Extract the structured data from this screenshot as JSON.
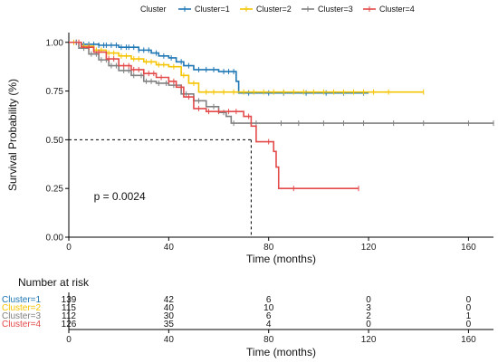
{
  "chart_data": [
    {
      "type": "line",
      "subtype": "kaplan-meier",
      "legend": {
        "title": "Cluster",
        "placement": "top"
      },
      "xlabel": "Time (months)",
      "ylabel": "Survival Probability (%)",
      "xlim": [
        0,
        170
      ],
      "ylim": [
        0,
        1.05
      ],
      "x_ticks": [
        0,
        40,
        80,
        120,
        160
      ],
      "y_ticks": [
        "0.00",
        "0.25",
        "0.50",
        "0.75",
        "1.00"
      ],
      "grid": false,
      "annotation": "p = 0.0024",
      "median_reference": {
        "survival": 0.5,
        "time": 73
      },
      "series": [
        {
          "name": "Cluster=1",
          "color": "#1f77b4",
          "steps": [
            [
              0,
              1.0
            ],
            [
              5,
              0.99
            ],
            [
              12,
              0.985
            ],
            [
              20,
              0.975
            ],
            [
              28,
              0.96
            ],
            [
              33,
              0.945
            ],
            [
              36,
              0.93
            ],
            [
              40,
              0.92
            ],
            [
              43,
              0.9
            ],
            [
              46,
              0.88
            ],
            [
              50,
              0.86
            ],
            [
              60,
              0.85
            ],
            [
              67,
              0.8
            ],
            [
              68,
              0.74
            ],
            [
              120,
              0.74
            ]
          ],
          "censors": [
            3,
            6,
            8,
            10,
            12,
            14,
            15,
            17,
            19,
            21,
            23,
            24,
            26,
            28,
            30,
            32,
            35,
            38,
            41,
            45,
            48,
            52,
            55,
            58,
            62,
            64,
            66,
            72,
            80,
            86,
            95,
            103,
            110,
            118
          ]
        },
        {
          "name": "Cluster=2",
          "color": "#f5c400",
          "steps": [
            [
              0,
              1.0
            ],
            [
              5,
              0.98
            ],
            [
              10,
              0.96
            ],
            [
              15,
              0.945
            ],
            [
              20,
              0.93
            ],
            [
              25,
              0.915
            ],
            [
              30,
              0.9
            ],
            [
              35,
              0.885
            ],
            [
              40,
              0.875
            ],
            [
              45,
              0.83
            ],
            [
              48,
              0.79
            ],
            [
              52,
              0.745
            ],
            [
              142,
              0.745
            ]
          ],
          "censors": [
            2,
            4,
            6,
            8,
            11,
            13,
            16,
            18,
            21,
            23,
            26,
            28,
            31,
            33,
            36,
            38,
            42,
            46,
            50,
            55,
            58,
            62,
            66,
            70,
            74,
            78,
            82,
            86,
            90,
            94,
            98,
            102,
            106,
            110,
            114,
            118,
            122,
            128,
            142
          ]
        },
        {
          "name": "Cluster=3",
          "color": "#808080",
          "steps": [
            [
              0,
              1.0
            ],
            [
              4,
              0.97
            ],
            [
              8,
              0.94
            ],
            [
              12,
              0.91
            ],
            [
              16,
              0.88
            ],
            [
              20,
              0.855
            ],
            [
              25,
              0.83
            ],
            [
              30,
              0.8
            ],
            [
              35,
              0.79
            ],
            [
              40,
              0.78
            ],
            [
              45,
              0.735
            ],
            [
              50,
              0.7
            ],
            [
              55,
              0.67
            ],
            [
              60,
              0.64
            ],
            [
              63,
              0.62
            ],
            [
              65,
              0.585
            ],
            [
              170,
              0.585
            ]
          ],
          "censors": [
            3,
            6,
            9,
            11,
            13,
            15,
            17,
            19,
            22,
            24,
            26,
            29,
            31,
            33,
            36,
            39,
            42,
            47,
            52,
            58,
            62,
            66,
            75,
            85,
            92,
            102,
            110,
            118,
            130,
            142,
            160,
            170
          ]
        },
        {
          "name": "Cluster=4",
          "color": "#e34a4a",
          "steps": [
            [
              0,
              1.0
            ],
            [
              5,
              0.975
            ],
            [
              10,
              0.95
            ],
            [
              15,
              0.915
            ],
            [
              20,
              0.88
            ],
            [
              25,
              0.86
            ],
            [
              30,
              0.84
            ],
            [
              35,
              0.82
            ],
            [
              40,
              0.8
            ],
            [
              43,
              0.77
            ],
            [
              46,
              0.72
            ],
            [
              50,
              0.66
            ],
            [
              55,
              0.645
            ],
            [
              70,
              0.62
            ],
            [
              73,
              0.57
            ],
            [
              75,
              0.49
            ],
            [
              82,
              0.44
            ],
            [
              83,
              0.36
            ],
            [
              84,
              0.25
            ],
            [
              116,
              0.25
            ]
          ],
          "censors": [
            4,
            8,
            12,
            16,
            18,
            22,
            24,
            26,
            28,
            30,
            32,
            34,
            37,
            40,
            42,
            45,
            48,
            52,
            56,
            60,
            64,
            67,
            72,
            80,
            90,
            116
          ]
        }
      ]
    },
    {
      "type": "table",
      "title": "Number at risk",
      "xlabel": "Time (months)",
      "columns": [
        0,
        40,
        80,
        120,
        160
      ],
      "rows": [
        {
          "label": "Cluster=1",
          "color": "#1f77b4",
          "values": [
            139,
            42,
            6,
            0,
            0
          ]
        },
        {
          "label": "Cluster=2",
          "color": "#f5c400",
          "values": [
            115,
            40,
            10,
            3,
            0
          ]
        },
        {
          "label": "Cluster=3",
          "color": "#808080",
          "values": [
            112,
            30,
            6,
            2,
            1
          ]
        },
        {
          "label": "Cluster=4",
          "color": "#e34a4a",
          "values": [
            126,
            35,
            4,
            0,
            0
          ]
        }
      ]
    }
  ]
}
